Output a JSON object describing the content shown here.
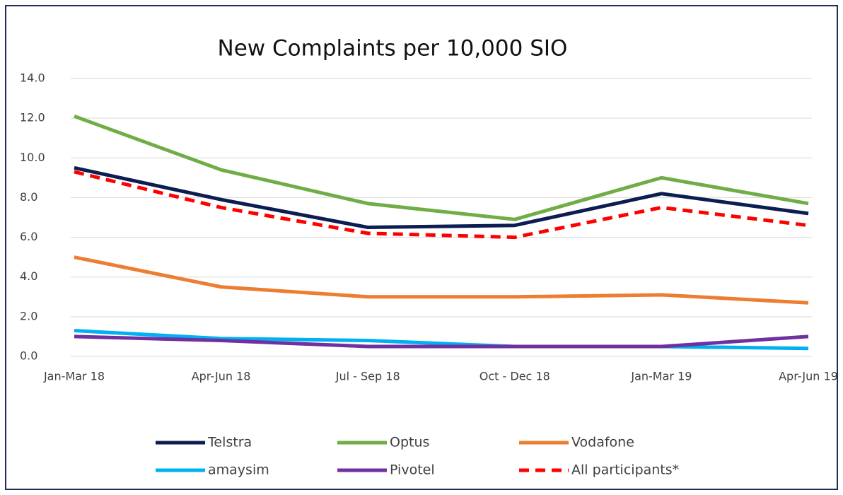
{
  "chart_data": {
    "type": "line",
    "title": "New Complaints per 10,000 SIO",
    "categories": [
      "Jan-Mar 18",
      "Apr-Jun 18",
      "Jul - Sep 18",
      "Oct - Dec 18",
      "Jan-Mar 19",
      "Apr-Jun 19"
    ],
    "series": [
      {
        "name": "Telstra",
        "color": "#0b1d51",
        "values": [
          9.5,
          7.9,
          6.5,
          6.6,
          8.2,
          7.2
        ]
      },
      {
        "name": "Optus",
        "color": "#70ad47",
        "values": [
          12.1,
          9.4,
          7.7,
          6.9,
          9.0,
          7.7
        ]
      },
      {
        "name": "Vodafone",
        "color": "#ed7d31",
        "values": [
          5.0,
          3.5,
          3.0,
          3.0,
          3.1,
          2.7
        ]
      },
      {
        "name": "amaysim",
        "color": "#00b0f0",
        "values": [
          1.3,
          0.9,
          0.8,
          0.5,
          0.5,
          0.4
        ]
      },
      {
        "name": "Pivotel",
        "color": "#7030a0",
        "values": [
          1.0,
          0.8,
          0.5,
          0.5,
          0.5,
          1.0
        ]
      },
      {
        "name": "All participants*",
        "color": "#ff0000",
        "dashed": true,
        "values": [
          9.3,
          7.5,
          6.2,
          6.0,
          7.5,
          6.6
        ]
      }
    ],
    "ylim": [
      0,
      14
    ],
    "yticks": [
      {
        "value": 0,
        "label": "0.0"
      },
      {
        "value": 2,
        "label": "2.0"
      },
      {
        "value": 4,
        "label": "4.0"
      },
      {
        "value": 6,
        "label": "6.0"
      },
      {
        "value": 8,
        "label": "8.0"
      },
      {
        "value": 10,
        "label": "10.0"
      },
      {
        "value": 12,
        "label": "12.0"
      },
      {
        "value": 14,
        "label": "14.0"
      }
    ],
    "grid": true,
    "legend": "bottom"
  }
}
